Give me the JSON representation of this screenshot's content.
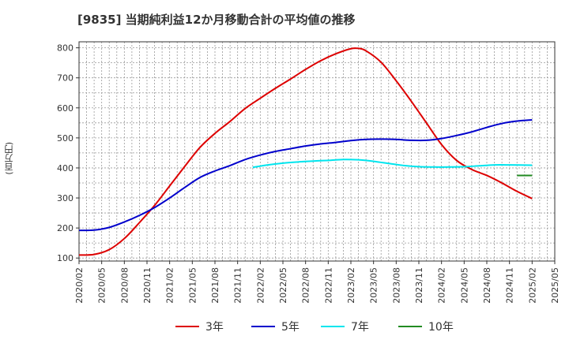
{
  "title": "[9835]  当期純利益12か月移動合計の平均値の推移",
  "chart_data": {
    "type": "line",
    "title": "[9835]  当期純利益12か月移動合計の平均値の推移",
    "xlabel": "",
    "ylabel": "(百万円)",
    "ylim": [
      90,
      820
    ],
    "yticks": [
      100,
      200,
      300,
      400,
      500,
      600,
      700,
      800
    ],
    "xlim": [
      "2020/02",
      "2025/05"
    ],
    "xticks": [
      "2020/02",
      "2020/05",
      "2020/08",
      "2020/11",
      "2021/02",
      "2021/05",
      "2021/08",
      "2021/11",
      "2022/02",
      "2022/05",
      "2022/08",
      "2022/11",
      "2023/02",
      "2023/05",
      "2023/08",
      "2023/11",
      "2024/02",
      "2024/05",
      "2024/08",
      "2024/11",
      "2025/02",
      "2025/05"
    ],
    "grid": true,
    "legend_position": "bottom",
    "series": [
      {
        "name": "3年",
        "color": "#dd0000",
        "points": [
          [
            "2020/02",
            110
          ],
          [
            "2020/04",
            112
          ],
          [
            "2020/06",
            128
          ],
          [
            "2020/08",
            165
          ],
          [
            "2020/10",
            218
          ],
          [
            "2020/12",
            275
          ],
          [
            "2021/02",
            340
          ],
          [
            "2021/04",
            405
          ],
          [
            "2021/06",
            468
          ],
          [
            "2021/08",
            515
          ],
          [
            "2021/10",
            555
          ],
          [
            "2021/12",
            598
          ],
          [
            "2022/02",
            632
          ],
          [
            "2022/04",
            665
          ],
          [
            "2022/06",
            696
          ],
          [
            "2022/08",
            728
          ],
          [
            "2022/10",
            757
          ],
          [
            "2022/12",
            780
          ],
          [
            "2023/02",
            797
          ],
          [
            "2023/03",
            798
          ],
          [
            "2023/04",
            790
          ],
          [
            "2023/06",
            752
          ],
          [
            "2023/08",
            690
          ],
          [
            "2023/10",
            622
          ],
          [
            "2023/12",
            550
          ],
          [
            "2024/02",
            478
          ],
          [
            "2024/04",
            425
          ],
          [
            "2024/06",
            395
          ],
          [
            "2024/08",
            375
          ],
          [
            "2024/10",
            350
          ],
          [
            "2024/12",
            322
          ],
          [
            "2025/02",
            298
          ]
        ]
      },
      {
        "name": "5年",
        "color": "#0000cc",
        "points": [
          [
            "2020/02",
            192
          ],
          [
            "2020/04",
            193
          ],
          [
            "2020/06",
            202
          ],
          [
            "2020/08",
            220
          ],
          [
            "2020/10",
            242
          ],
          [
            "2020/12",
            268
          ],
          [
            "2021/02",
            300
          ],
          [
            "2021/04",
            335
          ],
          [
            "2021/06",
            368
          ],
          [
            "2021/08",
            390
          ],
          [
            "2021/10",
            408
          ],
          [
            "2021/12",
            428
          ],
          [
            "2022/02",
            443
          ],
          [
            "2022/04",
            455
          ],
          [
            "2022/06",
            464
          ],
          [
            "2022/08",
            473
          ],
          [
            "2022/10",
            480
          ],
          [
            "2022/12",
            485
          ],
          [
            "2023/02",
            491
          ],
          [
            "2023/04",
            495
          ],
          [
            "2023/06",
            496
          ],
          [
            "2023/08",
            495
          ],
          [
            "2023/10",
            492
          ],
          [
            "2023/12",
            492
          ],
          [
            "2024/02",
            498
          ],
          [
            "2024/04",
            508
          ],
          [
            "2024/06",
            520
          ],
          [
            "2024/08",
            535
          ],
          [
            "2024/10",
            548
          ],
          [
            "2024/12",
            556
          ],
          [
            "2025/02",
            560
          ]
        ]
      },
      {
        "name": "7年",
        "color": "#00e5ee",
        "points": [
          [
            "2022/01",
            402
          ],
          [
            "2022/03",
            410
          ],
          [
            "2022/05",
            416
          ],
          [
            "2022/07",
            420
          ],
          [
            "2022/09",
            423
          ],
          [
            "2022/11",
            425
          ],
          [
            "2023/01",
            428
          ],
          [
            "2023/03",
            427
          ],
          [
            "2023/05",
            422
          ],
          [
            "2023/07",
            415
          ],
          [
            "2023/09",
            408
          ],
          [
            "2023/11",
            404
          ],
          [
            "2024/01",
            403
          ],
          [
            "2024/03",
            403
          ],
          [
            "2024/05",
            404
          ],
          [
            "2024/07",
            407
          ],
          [
            "2024/09",
            410
          ],
          [
            "2024/11",
            410
          ],
          [
            "2025/02",
            409
          ]
        ]
      },
      {
        "name": "10年",
        "color": "#228b22",
        "points": [
          [
            "2024/12",
            375
          ],
          [
            "2025/02",
            375
          ]
        ]
      }
    ]
  }
}
